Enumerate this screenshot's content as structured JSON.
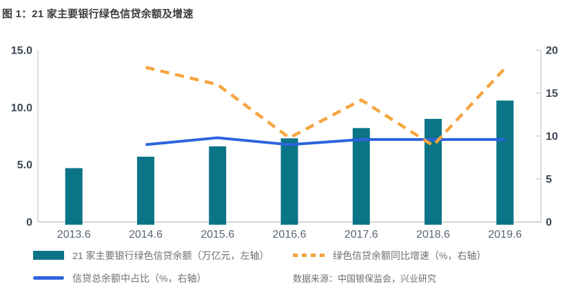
{
  "title": "图 1：21 家主要银行绿色信贷余额及增速",
  "source": "数据来源：中国银保监会，兴业研究",
  "colors": {
    "bar": "#0b7487",
    "line_ratio": "#2c63de",
    "line_growth": "#f6a43f",
    "axis_line": "#c8c8c8",
    "axis_number": "#3d4654",
    "x_label": "#5a6576",
    "title_text": "#3c3c3c",
    "legend_text": "#6f6f6f"
  },
  "legend": {
    "bar_label": "21 家主要银行绿色信贷余额（万亿元，左轴）",
    "growth_label": "绿色信贷余额同比增速（%，右轴）",
    "ratio_label": "信贷总余额中占比（%，右轴）"
  },
  "chart_data": {
    "type": "bar",
    "categories": [
      "2013.6",
      "2014.6",
      "2015.6",
      "2016.6",
      "2017.6",
      "2018.6",
      "2019.6"
    ],
    "series": [
      {
        "name": "21 家主要银行绿色信贷余额（万亿元，左轴）",
        "type": "bar",
        "axis": "left",
        "values": [
          4.7,
          5.7,
          6.6,
          7.3,
          8.2,
          9.0,
          10.6
        ]
      },
      {
        "name": "信贷总余额中占比（%，右轴）",
        "type": "line",
        "axis": "right",
        "values": [
          null,
          9.0,
          9.8,
          9.0,
          9.6,
          9.6,
          9.6
        ]
      },
      {
        "name": "绿色信贷余额同比增速（%，右轴）",
        "type": "line-dashed",
        "axis": "right",
        "values": [
          null,
          18.0,
          16.0,
          9.8,
          14.2,
          8.9,
          17.9
        ]
      }
    ],
    "left_axis": {
      "min": 0,
      "max": 15,
      "tick_values": [
        0,
        5,
        10,
        15
      ],
      "tick_labels": [
        "0",
        "5.0",
        "10.0",
        "15.0"
      ]
    },
    "right_axis": {
      "min": 0,
      "max": 20,
      "tick_values": [
        0,
        5,
        10,
        15,
        20
      ],
      "tick_labels": [
        "0",
        "5",
        "10",
        "15",
        "20"
      ]
    },
    "grid": false,
    "legend_position": "bottom"
  }
}
